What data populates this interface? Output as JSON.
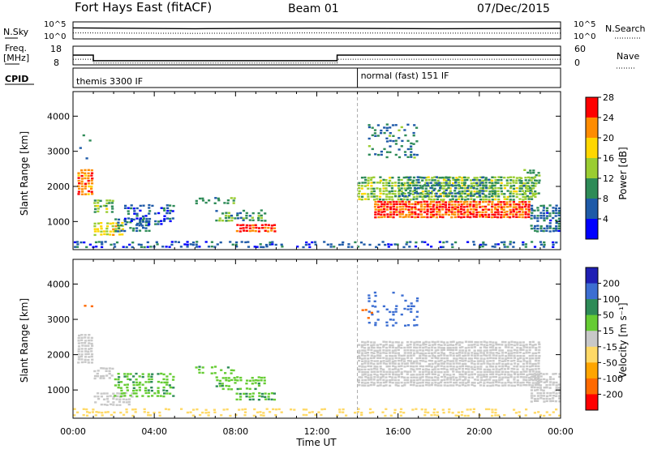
{
  "header": {
    "title": "Fort Hays East (fitACF)",
    "beam": "Beam 01",
    "date": "07/Dec/2015"
  },
  "chart_data": [
    {
      "type": "line",
      "panel": "sky-search",
      "left_label": "N.Sky",
      "right_label": "N.Search",
      "left_ticks": [
        "10^5",
        "10^0"
      ],
      "right_ticks": [
        "10^5",
        "10^0"
      ],
      "series": [
        {
          "name": "N.Sky",
          "style": "solid",
          "x": [
            0,
            6,
            12,
            18,
            24
          ],
          "y": [
            0.65,
            0.6,
            0.63,
            0.6,
            0.62
          ]
        },
        {
          "name": "N.Search",
          "style": "dotted",
          "x": [
            0,
            6,
            12,
            18,
            24
          ],
          "y": [
            0.35,
            0.33,
            0.35,
            0.34,
            0.34
          ]
        }
      ],
      "xlim": [
        0,
        24
      ]
    },
    {
      "type": "line",
      "panel": "freq-nave",
      "left_label": "Freq.",
      "left_unit": "[MHz]",
      "right_label": "Nave",
      "left_ticks": [
        "18",
        "8"
      ],
      "right_ticks": [
        "60",
        "0"
      ],
      "ylim_left": [
        8,
        18
      ],
      "ylim_right": [
        0,
        60
      ],
      "series": [
        {
          "name": "Freq.",
          "style": "solid",
          "x": [
            0,
            1.0,
            1.0,
            13.0,
            13.0,
            24
          ],
          "y": [
            13.2,
            13.2,
            10.2,
            10.2,
            13.2,
            13.2
          ]
        },
        {
          "name": "Nave",
          "style": "dotted",
          "x": [
            0,
            1.0,
            1.0,
            13.0,
            13.0,
            24
          ],
          "y": [
            18,
            18,
            6,
            6,
            18,
            18
          ]
        }
      ],
      "xlim": [
        0,
        24
      ]
    },
    {
      "type": "text",
      "panel": "cpid",
      "label": "CPID",
      "segments": [
        {
          "start": 0,
          "end": 14,
          "text": "themis 3300 IF"
        },
        {
          "start": 14,
          "end": 24,
          "text": "normal (fast) 151 IF"
        }
      ]
    },
    {
      "type": "heatmap",
      "panel": "power",
      "ylabel": "Slant Range [km]",
      "yticks": [
        1000,
        2000,
        3000,
        4000
      ],
      "ylim": [
        200,
        4700
      ],
      "xlim": [
        0,
        24
      ],
      "colorbar": {
        "label": "Power [dB]",
        "ticks": [
          "4",
          "8",
          "12",
          "16",
          "20",
          "24",
          "28"
        ],
        "range": [
          0,
          30
        ],
        "colors": [
          "#0000ff",
          "#1e5aa8",
          "#2e8b57",
          "#9acd32",
          "#ffd700",
          "#ff8c00",
          "#ff0000"
        ]
      },
      "regions": [
        {
          "t0": 0.2,
          "t1": 1.0,
          "r0": 1750,
          "r1": 2500,
          "v": 24,
          "d": 0.95
        },
        {
          "t0": 0.3,
          "t1": 1.2,
          "r0": 2700,
          "r1": 3500,
          "v": 8,
          "d": 0.08
        },
        {
          "t0": 1.0,
          "t1": 2.0,
          "r0": 1250,
          "r1": 1650,
          "v": 14,
          "d": 0.7
        },
        {
          "t0": 1.0,
          "t1": 2.5,
          "r0": 600,
          "r1": 1000,
          "v": 18,
          "d": 0.75
        },
        {
          "t0": 2.0,
          "t1": 3.8,
          "r0": 700,
          "r1": 1100,
          "v": 8,
          "d": 0.55
        },
        {
          "t0": 2.5,
          "t1": 5.0,
          "r0": 900,
          "r1": 1500,
          "v": 6,
          "d": 0.5
        },
        {
          "t0": 6.0,
          "t1": 8.0,
          "r0": 1500,
          "r1": 1700,
          "v": 12,
          "d": 0.5
        },
        {
          "t0": 7.0,
          "t1": 9.5,
          "r0": 1000,
          "r1": 1350,
          "v": 12,
          "d": 0.55
        },
        {
          "t0": 8.0,
          "t1": 10.0,
          "r0": 700,
          "r1": 950,
          "v": 26,
          "d": 0.9
        },
        {
          "t0": 0.0,
          "t1": 24.0,
          "r0": 250,
          "r1": 450,
          "v": 6,
          "d": 0.35
        },
        {
          "t0": 14.0,
          "t1": 22.8,
          "r0": 1600,
          "r1": 2300,
          "v": 14,
          "d": 0.85
        },
        {
          "t0": 14.8,
          "t1": 22.5,
          "r0": 1100,
          "r1": 1600,
          "v": 26,
          "d": 0.95
        },
        {
          "t0": 16.0,
          "t1": 21.0,
          "r0": 1700,
          "r1": 2300,
          "v": 9,
          "d": 0.4
        },
        {
          "t0": 14.5,
          "t1": 17.0,
          "r0": 2800,
          "r1": 3800,
          "v": 10,
          "d": 0.3
        },
        {
          "t0": 22.5,
          "t1": 24.0,
          "r0": 700,
          "r1": 1500,
          "v": 8,
          "d": 0.75
        },
        {
          "t0": 22.0,
          "t1": 23.0,
          "r0": 1700,
          "r1": 2500,
          "v": 12,
          "d": 0.5
        }
      ]
    },
    {
      "type": "heatmap",
      "panel": "velocity",
      "ylabel": "Slant Range [km]",
      "yticks": [
        1000,
        2000,
        3000,
        4000
      ],
      "ylim": [
        200,
        4700
      ],
      "xlim": [
        0,
        24
      ],
      "xticks": [
        "00:00",
        "04:00",
        "08:00",
        "12:00",
        "16:00",
        "20:00",
        "00:00"
      ],
      "xlabel": "Time UT",
      "colorbar": {
        "label": "Velocity [m s⁻¹]",
        "ticks": [
          "200",
          "100",
          "50",
          "15",
          "-15",
          "-50",
          "-100",
          "-200"
        ],
        "range": [
          -250,
          250
        ],
        "colors": [
          "#1f1fb4",
          "#3c6ed2",
          "#2e8b57",
          "#66cc33",
          "#c8c8c8",
          "#ffd966",
          "#ffa500",
          "#ff6a00",
          "#ff0000"
        ]
      },
      "regions": [
        {
          "t0": 0.2,
          "t1": 1.0,
          "r0": 1750,
          "r1": 2600,
          "v": 0,
          "d": 0.9
        },
        {
          "t0": 0.5,
          "t1": 1.0,
          "r0": 2900,
          "r1": 3500,
          "v": -150,
          "d": 0.2
        },
        {
          "t0": 1.0,
          "t1": 2.0,
          "r0": 1300,
          "r1": 1650,
          "v": 0,
          "d": 0.6
        },
        {
          "t0": 1.0,
          "t1": 3.0,
          "r0": 550,
          "r1": 950,
          "v": 0,
          "d": 0.8
        },
        {
          "t0": 2.0,
          "t1": 5.0,
          "r0": 800,
          "r1": 1500,
          "v": 40,
          "d": 0.55
        },
        {
          "t0": 6.0,
          "t1": 8.0,
          "r0": 1450,
          "r1": 1700,
          "v": 40,
          "d": 0.5
        },
        {
          "t0": 7.0,
          "t1": 9.5,
          "r0": 1000,
          "r1": 1400,
          "v": 40,
          "d": 0.55
        },
        {
          "t0": 8.0,
          "t1": 10.0,
          "r0": 700,
          "r1": 950,
          "v": 45,
          "d": 0.8
        },
        {
          "t0": 0.0,
          "t1": 24.0,
          "r0": 250,
          "r1": 500,
          "v": -30,
          "d": 0.35
        },
        {
          "t0": 14.0,
          "t1": 23.0,
          "r0": 1100,
          "r1": 2400,
          "v": 0,
          "d": 0.95
        },
        {
          "t0": 14.5,
          "t1": 17.0,
          "r0": 2800,
          "r1": 3800,
          "v": 150,
          "d": 0.2
        },
        {
          "t0": 22.5,
          "t1": 24.0,
          "r0": 650,
          "r1": 1500,
          "v": 0,
          "d": 0.8
        },
        {
          "t0": 14.0,
          "t1": 14.8,
          "r0": 3000,
          "r1": 3400,
          "v": -150,
          "d": 0.15
        }
      ]
    }
  ]
}
